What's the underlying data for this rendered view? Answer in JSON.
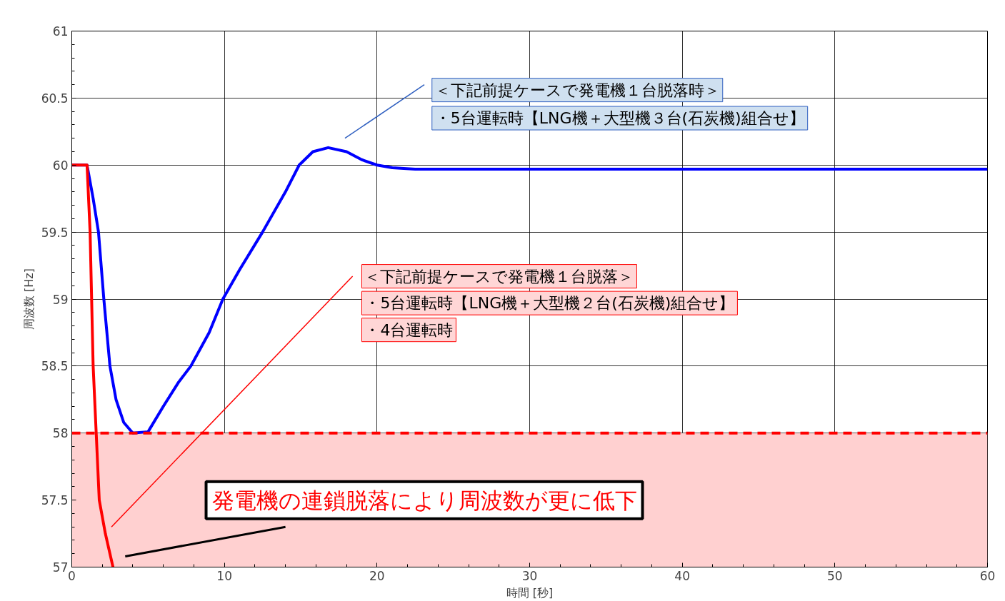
{
  "chart_data": {
    "type": "line",
    "xlabel": "時間 [秒]",
    "ylabel": "周波数 [Hz]",
    "xlim": [
      0,
      60
    ],
    "ylim": [
      57,
      61
    ],
    "xticks": [
      0,
      10,
      20,
      30,
      40,
      50,
      60
    ],
    "yticks": [
      57,
      57.5,
      58,
      58.5,
      59,
      59.5,
      60,
      60.5,
      61
    ],
    "grid": true,
    "line_style": "solid",
    "marker": "none",
    "series": [
      {
        "color": "#0000ff",
        "x": [
          0,
          1,
          1.4,
          1.75,
          2.1,
          2.5,
          2.9,
          3.4,
          4,
          5,
          6,
          7,
          7.8,
          9,
          9.9,
          11,
          12.5,
          14,
          14.9,
          15.8,
          16.8,
          18,
          19,
          20,
          21,
          22.5,
          30,
          40,
          50,
          60
        ],
        "values": [
          60,
          60,
          59.75,
          59.5,
          59,
          58.5,
          58.25,
          58.08,
          58,
          58.01,
          58.2,
          58.38,
          58.5,
          58.75,
          59,
          59.22,
          59.5,
          59.8,
          60,
          60.1,
          60.13,
          60.1,
          60.04,
          60,
          59.98,
          59.97,
          59.97,
          59.97,
          59.97,
          59.97
        ]
      },
      {
        "color": "#ff0000",
        "x": [
          0,
          1,
          1.2,
          1.3,
          1.4,
          1.6,
          1.8,
          2.2,
          2.7
        ],
        "values": [
          60,
          60,
          59.5,
          59,
          58.5,
          58,
          57.5,
          57.25,
          57
        ]
      }
    ],
    "ref_lines": [
      {
        "axis": "y",
        "value": 58,
        "color": "#ff0000",
        "line_style": "dashed"
      }
    ],
    "bands": [
      {
        "axis": "y",
        "from": 57,
        "to": 58,
        "color": "#ffd0d0"
      }
    ],
    "annotations": [
      "＜下記前提ケースで発電機１台脱落時＞",
      "・5台運転時【LNG機＋大型機３台(石炭機)組合せ】",
      "＜下記前提ケースで発電機１台脱落＞",
      "・5台運転時【LNG機＋大型機２台(石炭機)組合せ】",
      "・4台運転時",
      "発電機の連鎖脱落により周波数が更に低下"
    ]
  }
}
